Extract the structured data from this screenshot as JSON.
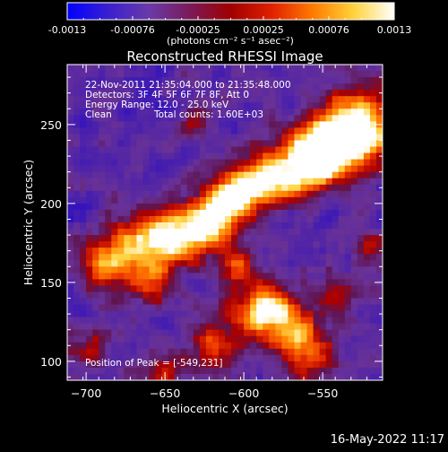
{
  "colorbar": {
    "ticks": [
      "-0.0013",
      "-0.00076",
      "-0.00025",
      "0.00025",
      "0.00076",
      "0.0013"
    ],
    "units": "(photons cm⁻² s⁻¹ asec⁻²)",
    "colors": [
      "#0000ff",
      "#3a1fd0",
      "#6a3aa8",
      "#7a1a5a",
      "#a00000",
      "#e02000",
      "#ff7a00",
      "#ffd23a",
      "#ffffff"
    ]
  },
  "chart_data": {
    "type": "heatmap",
    "title": "Reconstructed RHESSI Image",
    "xlabel": "Heliocentric X (arcsec)",
    "ylabel": "Heliocentric Y (arcsec)",
    "xlim": [
      -712,
      -512
    ],
    "ylim": [
      88,
      288
    ],
    "xticks": [
      -700,
      -650,
      -600,
      -550
    ],
    "yticks": [
      100,
      150,
      200,
      250
    ],
    "clim": [
      -0.0013,
      0.0013
    ],
    "peak": [
      -549,
      231
    ],
    "annotations": {
      "time_range": "22-Nov-2011 21:35:04.000 to 21:35:48.000",
      "detectors": "Detectors: 3F 4F 5F 6F 7F 8F, Att 0",
      "energy": "Energy Range: 12.0 - 25.0 keV",
      "clean_label": "Clean",
      "total_counts": "Total counts: 1.60E+03",
      "peak_text": "Position of Peak = [-549,231]"
    }
  },
  "footer": {
    "timestamp": "16-May-2022 11:17"
  }
}
